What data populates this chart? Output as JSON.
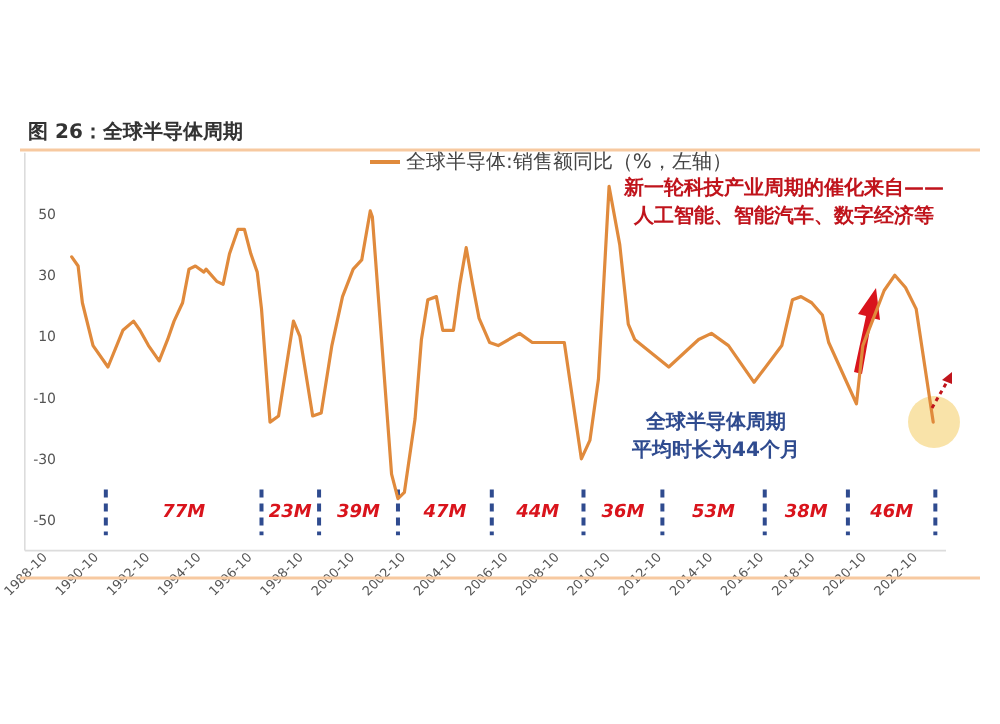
{
  "chart_data": {
    "type": "line",
    "title": "图 26：全球半导体周期",
    "x": [
      "1989-11",
      "1990-02",
      "1990-04",
      "1990-09",
      "1991-04",
      "1991-11",
      "1992-04",
      "1992-07",
      "1992-11",
      "1993-04",
      "1993-08",
      "1993-11",
      "1994-03",
      "1994-06",
      "1994-09",
      "1995-01",
      "1995-02",
      "1995-07",
      "1995-10",
      "1996-01",
      "1996-05",
      "1996-08",
      "1996-11",
      "1997-02",
      "1997-04",
      "1997-08",
      "1997-12",
      "1998-07",
      "1998-10",
      "1999-04",
      "1999-08",
      "2000-01",
      "2000-06",
      "2000-11",
      "2001-03",
      "2001-07",
      "2001-08",
      "2001-11",
      "2002-05",
      "2002-08",
      "2002-11",
      "2003-04",
      "2003-07",
      "2003-10",
      "2004-02",
      "2004-05",
      "2004-10",
      "2005-01",
      "2005-04",
      "2005-07",
      "2005-10",
      "2006-03",
      "2006-07",
      "2007-05",
      "2007-11",
      "2009-02",
      "2009-10",
      "2010-02",
      "2010-06",
      "2010-11",
      "2011-04",
      "2011-08",
      "2011-11",
      "2013-03",
      "2014-05",
      "2014-11",
      "2015-07",
      "2016-07",
      "2017-08",
      "2018-01",
      "2018-05",
      "2018-10",
      "2019-03",
      "2019-06",
      "2020-07",
      "2020-10",
      "2021-08",
      "2022-01",
      "2022-06",
      "2022-11",
      "2023-07"
    ],
    "series": [
      {
        "name": "全球半导体:销售额同比（%，左轴）",
        "color": "#e08a3c",
        "values": [
          36,
          33,
          21,
          7,
          0,
          12,
          15,
          12,
          7,
          2,
          9,
          15,
          21,
          32,
          33,
          31,
          32,
          28,
          27,
          37,
          45,
          45,
          37,
          31,
          19,
          -18,
          -16,
          15,
          10,
          -16,
          -15,
          7,
          23,
          32,
          35,
          51,
          49,
          21,
          -35,
          -43,
          -41,
          -17,
          9,
          22,
          23,
          12,
          12,
          27,
          39,
          27,
          16,
          8,
          7,
          11,
          8,
          8,
          -30,
          -24,
          -4,
          59,
          40,
          14,
          9,
          0,
          9,
          11,
          7,
          -5,
          7,
          22,
          23,
          21,
          17,
          8,
          -12,
          7,
          25,
          30,
          26,
          19,
          -18
        ]
      }
    ],
    "xlim": [
      "1988-01",
      "2024-01"
    ],
    "xticks": [
      "1988-10",
      "1990-10",
      "1992-10",
      "1994-10",
      "1996-10",
      "1998-10",
      "2000-10",
      "2002-10",
      "2004-10",
      "2006-10",
      "2008-10",
      "2010-10",
      "2012-10",
      "2014-10",
      "2016-10",
      "2018-10",
      "2020-10",
      "2022-10"
    ],
    "ylim": [
      -60,
      70
    ],
    "yticks": [
      -50,
      -30,
      -10,
      10,
      30,
      50
    ],
    "grid": false,
    "legend": "top",
    "marker": "none",
    "line_style": "solid",
    "ref_lines": [
      {
        "axis": "x",
        "value": "1991-03",
        "color": "#2f4b8f",
        "line_style": "dashed"
      },
      {
        "axis": "x",
        "value": "1997-04",
        "color": "#2f4b8f",
        "line_style": "dashed"
      },
      {
        "axis": "x",
        "value": "1999-07",
        "color": "#2f4b8f",
        "line_style": "dashed"
      },
      {
        "axis": "x",
        "value": "2002-08",
        "color": "#2f4b8f",
        "line_style": "dashed"
      },
      {
        "axis": "x",
        "value": "2006-04",
        "color": "#2f4b8f",
        "line_style": "dashed"
      },
      {
        "axis": "x",
        "value": "2009-11",
        "color": "#2f4b8f",
        "line_style": "dashed"
      },
      {
        "axis": "x",
        "value": "2012-12",
        "color": "#2f4b8f",
        "line_style": "dashed"
      },
      {
        "axis": "x",
        "value": "2016-12",
        "color": "#2f4b8f",
        "line_style": "dashed"
      },
      {
        "axis": "x",
        "value": "2020-03",
        "color": "#2f4b8f",
        "line_style": "dashed"
      },
      {
        "axis": "x",
        "value": "2023-08",
        "color": "#2f4b8f",
        "line_style": "dashed"
      }
    ],
    "annotations": [
      "新一轮科技产业周期的催化来自——",
      "人工智能、智能汽车、数字经济等",
      "全球半导体周期",
      "平均时长为44个月",
      "77M",
      "23M",
      "39M",
      "47M",
      "44M",
      "36M",
      "53M",
      "38M",
      "46M"
    ]
  }
}
